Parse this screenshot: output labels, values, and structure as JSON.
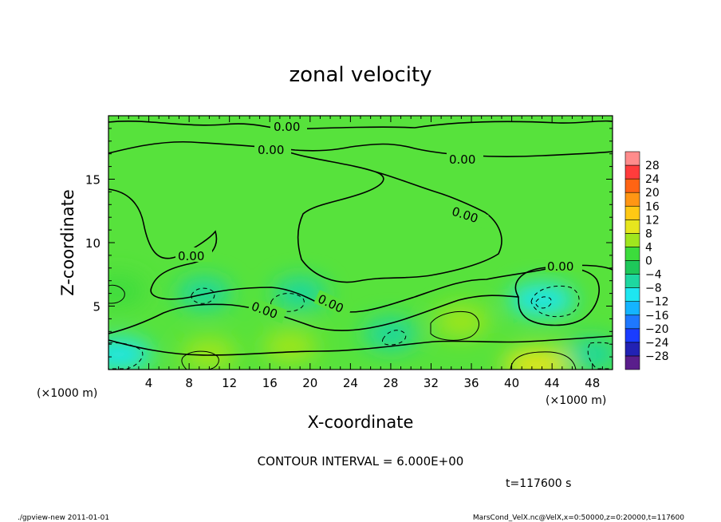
{
  "chart_data": {
    "type": "heatmap",
    "title": "zonal velocity",
    "xlabel": "X-coordinate",
    "ylabel": "Z-coordinate",
    "x_unit_label": "(×1000 m)",
    "y_unit_label": "(×1000 m)",
    "x_range": [
      0,
      50
    ],
    "y_range": [
      0,
      20
    ],
    "x_ticks": [
      4,
      8,
      12,
      16,
      20,
      24,
      28,
      32,
      36,
      40,
      44,
      48
    ],
    "y_ticks": [
      5,
      10,
      15
    ],
    "colorbar": {
      "labels": [
        "28",
        "24",
        "20",
        "16",
        "12",
        "8",
        "4",
        "0",
        "−4",
        "−8",
        "−12",
        "−16",
        "−20",
        "−24",
        "−28"
      ],
      "levels": [
        -32,
        -28,
        -24,
        -20,
        -16,
        -12,
        -8,
        -4,
        0,
        4,
        8,
        12,
        16,
        20,
        24,
        28,
        32
      ],
      "colors": [
        "#5a1e8c",
        "#2222b4",
        "#1a3cff",
        "#1e78ff",
        "#14b4ff",
        "#1ee6f0",
        "#1ed7a0",
        "#1ec85a",
        "#3cdc3c",
        "#a0e61e",
        "#e6e61e",
        "#ffc814",
        "#ff9614",
        "#ff6414",
        "#ff3c3c",
        "#ff8c8c"
      ]
    },
    "contour_labels": [
      "0.00",
      "0.00",
      "0.00",
      "0.00",
      "0.00",
      "0.00",
      "0.00",
      "0.00"
    ],
    "features": [
      {
        "x": 43,
        "z": 5.5,
        "value": -11
      },
      {
        "x": 35,
        "z": 3.8,
        "value": 7
      },
      {
        "x": 42.5,
        "z": 0.4,
        "value": 9
      },
      {
        "x": 10,
        "z": 1.2,
        "value": 5
      },
      {
        "x": 1,
        "z": 1.2,
        "value": -9
      },
      {
        "x": 48,
        "z": 1.2,
        "value": -7
      },
      {
        "x": 9.5,
        "z": 6.0,
        "value": -6
      },
      {
        "x": 19,
        "z": 6.0,
        "value": -5
      },
      {
        "x": 28,
        "z": 2.8,
        "value": -5
      },
      {
        "x": 18,
        "z": 1.8,
        "value": 4
      },
      {
        "x": 1,
        "z": 6.2,
        "value": 3
      }
    ]
  },
  "footer": {
    "contour_interval": "CONTOUR INTERVAL = 6.000E+00",
    "time": "t=117600 s",
    "program": "./gpview-new   2011-01-01",
    "file": "MarsCond_VelX.nc@VelX,x=0:50000,z=0:20000,t=117600"
  }
}
